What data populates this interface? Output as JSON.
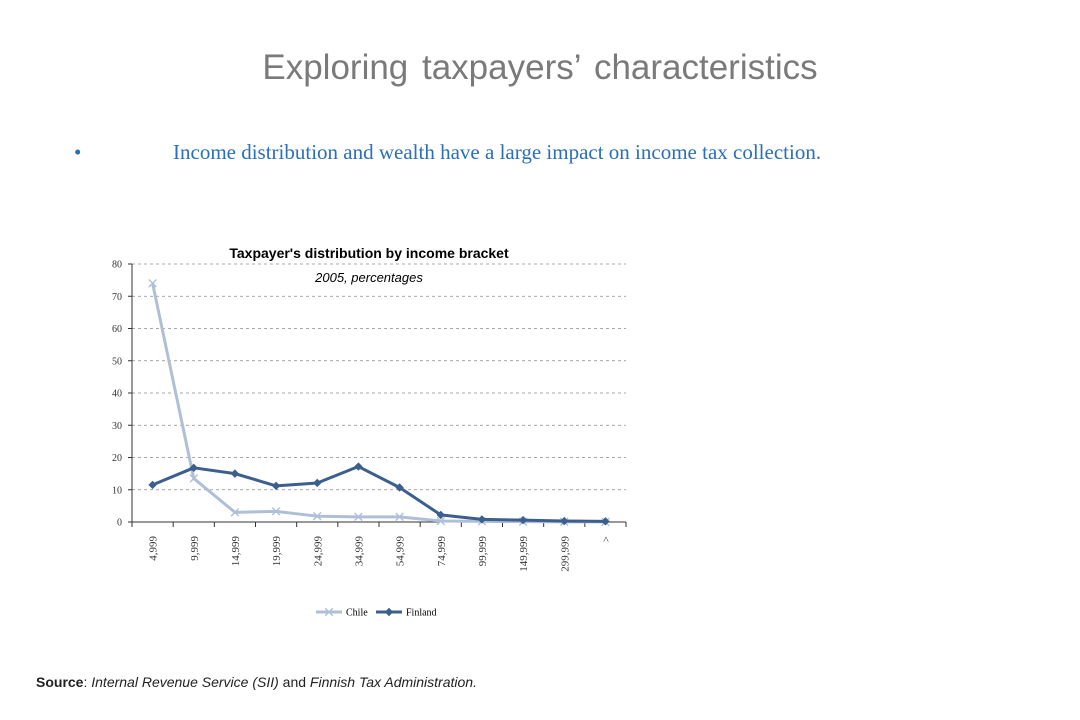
{
  "slide": {
    "title": "Exploring taxpayers’ characteristics",
    "bullet": "Income distribution and wealth have a large impact on income tax collection."
  },
  "source": {
    "label": "Source",
    "sep": ": ",
    "part1": "Internal Revenue Service (SII)",
    "and": " and ",
    "part2": "Finnish Tax Administration."
  },
  "chart_data": {
    "type": "line",
    "title": "Taxpayer's distribution by income bracket",
    "subtitle": "2005, percentages",
    "categories": [
      "4,999",
      "9,999",
      "14,999",
      "19,999",
      "24,999",
      "34,999",
      "54,999",
      "74,999",
      "99,999",
      "149,999",
      "299,999",
      ">"
    ],
    "ylim": [
      0,
      80
    ],
    "yticks": [
      0,
      10,
      20,
      30,
      40,
      50,
      60,
      70,
      80
    ],
    "grid": true,
    "legend_position": "bottom",
    "series": [
      {
        "name": "Chile",
        "color": "#b0bfd8",
        "marker": "x",
        "values": [
          74,
          13.5,
          3,
          3.3,
          1.8,
          1.6,
          1.6,
          0.3,
          0.2,
          0.1,
          0.05,
          0.02
        ]
      },
      {
        "name": "Finland",
        "color": "#3c5f8d",
        "marker": "diamond",
        "values": [
          11.5,
          16.8,
          15,
          11.2,
          12.1,
          17.2,
          10.7,
          2.2,
          0.8,
          0.6,
          0.3,
          0.2
        ]
      }
    ]
  }
}
